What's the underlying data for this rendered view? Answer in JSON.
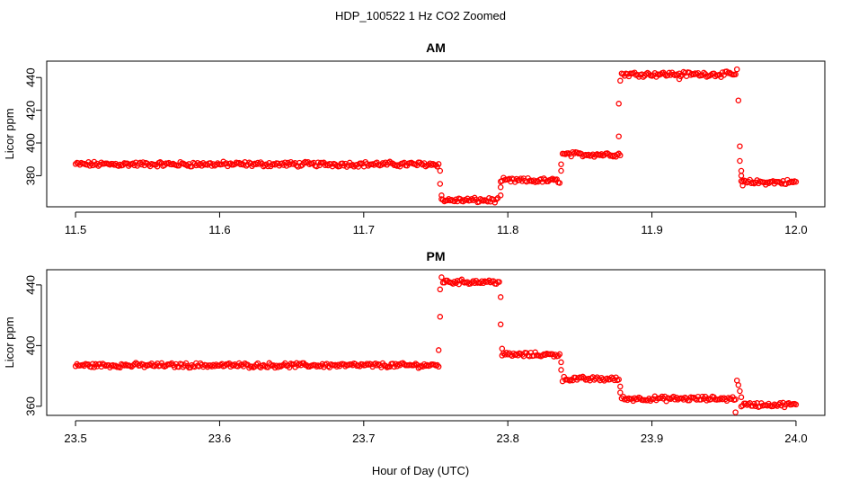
{
  "figure": {
    "title": "HDP_100522  1 Hz CO2 Zoomed",
    "xlabel": "Hour of Day (UTC)"
  },
  "colors": {
    "points": "#ff0000",
    "axis": "#000000",
    "background": "#ffffff"
  },
  "chart_data": [
    {
      "type": "scatter",
      "title": "AM",
      "xlabel": "Hour of Day (UTC)",
      "ylabel": "Licor ppm",
      "xlim": [
        11.5,
        12.0
      ],
      "ylim": [
        361,
        450
      ],
      "x_ticks": [
        "11.5",
        "11.6",
        "11.7",
        "11.8",
        "11.9",
        "12.0"
      ],
      "x_tick_values": [
        11.5,
        11.6,
        11.7,
        11.8,
        11.9,
        12.0
      ],
      "y_ticks": [
        "380",
        "400",
        "420",
        "440"
      ],
      "y_tick_values": [
        380,
        400,
        420,
        440
      ],
      "grid": false,
      "segments": [
        {
          "x": [
            11.5,
            11.752
          ],
          "y": 387
        },
        {
          "x": [
            11.754,
            11.793
          ],
          "y": 365
        },
        {
          "x": [
            11.795,
            11.836
          ],
          "y": 377
        },
        {
          "x": [
            11.838,
            11.878
          ],
          "y": 393
        },
        {
          "x": [
            11.879,
            11.958
          ],
          "y": 442
        },
        {
          "x": [
            11.962,
            12.0
          ],
          "y": 376
        }
      ],
      "transition_points": [
        [
          11.753,
          383
        ],
        [
          11.753,
          375
        ],
        [
          11.754,
          368
        ],
        [
          11.795,
          373
        ],
        [
          11.795,
          368
        ],
        [
          11.837,
          387
        ],
        [
          11.837,
          383
        ],
        [
          11.877,
          404
        ],
        [
          11.877,
          424
        ],
        [
          11.878,
          438
        ],
        [
          11.919,
          439
        ],
        [
          11.959,
          445
        ],
        [
          11.96,
          426
        ],
        [
          11.961,
          398
        ],
        [
          11.961,
          389
        ],
        [
          11.962,
          383
        ],
        [
          11.962,
          380
        ],
        [
          11.963,
          374
        ]
      ]
    },
    {
      "type": "scatter",
      "title": "PM",
      "xlabel": "Hour of Day (UTC)",
      "ylabel": "Licor ppm",
      "xlim": [
        23.5,
        24.0
      ],
      "ylim": [
        354,
        450
      ],
      "x_ticks": [
        "23.5",
        "23.6",
        "23.7",
        "23.8",
        "23.9",
        "24.0"
      ],
      "x_tick_values": [
        23.5,
        23.6,
        23.7,
        23.8,
        23.9,
        24.0
      ],
      "y_ticks": [
        "360",
        "400",
        "440"
      ],
      "y_tick_values": [
        360,
        400,
        440
      ],
      "grid": false,
      "segments": [
        {
          "x": [
            23.5,
            23.752
          ],
          "y": 387
        },
        {
          "x": [
            23.755,
            23.794
          ],
          "y": 442
        },
        {
          "x": [
            23.796,
            23.836
          ],
          "y": 394
        },
        {
          "x": [
            23.838,
            23.877
          ],
          "y": 378
        },
        {
          "x": [
            23.879,
            23.958
          ],
          "y": 365
        },
        {
          "x": [
            23.962,
            24.0
          ],
          "y": 361
        }
      ],
      "transition_points": [
        [
          23.752,
          397
        ],
        [
          23.753,
          419
        ],
        [
          23.753,
          437
        ],
        [
          23.754,
          445
        ],
        [
          23.795,
          432
        ],
        [
          23.795,
          414
        ],
        [
          23.796,
          398
        ],
        [
          23.837,
          389
        ],
        [
          23.837,
          384
        ],
        [
          23.878,
          373
        ],
        [
          23.878,
          369
        ],
        [
          23.958,
          356
        ],
        [
          23.959,
          377
        ],
        [
          23.96,
          374
        ],
        [
          23.961,
          370
        ],
        [
          23.962,
          366
        ]
      ]
    }
  ]
}
